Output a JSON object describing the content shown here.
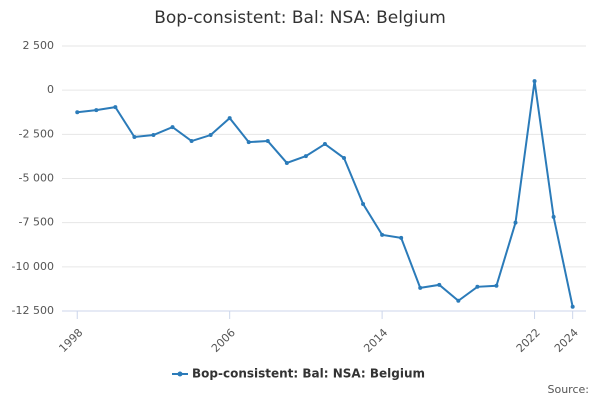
{
  "chart_data": {
    "type": "line",
    "title": "Bop-consistent: Bal: NSA: Belgium",
    "x": [
      1998,
      1999,
      2000,
      2001,
      2002,
      2003,
      2004,
      2005,
      2006,
      2007,
      2008,
      2009,
      2010,
      2011,
      2012,
      2013,
      2014,
      2015,
      2016,
      2017,
      2018,
      2019,
      2020,
      2021,
      2022,
      2023,
      2024
    ],
    "series": [
      {
        "name": "Bop-consistent: Bal: NSA: Belgium",
        "color": "#2b7bb9",
        "values": [
          -1250,
          -1130,
          -960,
          -2650,
          -2540,
          -2090,
          -2880,
          -2540,
          -1580,
          -2940,
          -2880,
          -4120,
          -3730,
          -3050,
          -3840,
          -6440,
          -8190,
          -8360,
          -11190,
          -11020,
          -11920,
          -11130,
          -11070,
          -7500,
          510,
          -7170,
          -12260
        ]
      }
    ],
    "xlim": [
      1997.2,
      2024.7
    ],
    "xticks": [
      1998,
      2006,
      2014,
      2022,
      2024
    ],
    "ylim": [
      -12500,
      2500
    ],
    "yticks": [
      {
        "value": -12500,
        "label": "-12 500"
      },
      {
        "value": -10000,
        "label": "-10 000"
      },
      {
        "value": -7500,
        "label": "-7 500"
      },
      {
        "value": -5000,
        "label": "-5 000"
      },
      {
        "value": -2500,
        "label": "-2 500"
      },
      0,
      {
        "value": 2500,
        "label": "2 500"
      }
    ],
    "grid": true,
    "legend": "bottom",
    "source": "Source:"
  }
}
